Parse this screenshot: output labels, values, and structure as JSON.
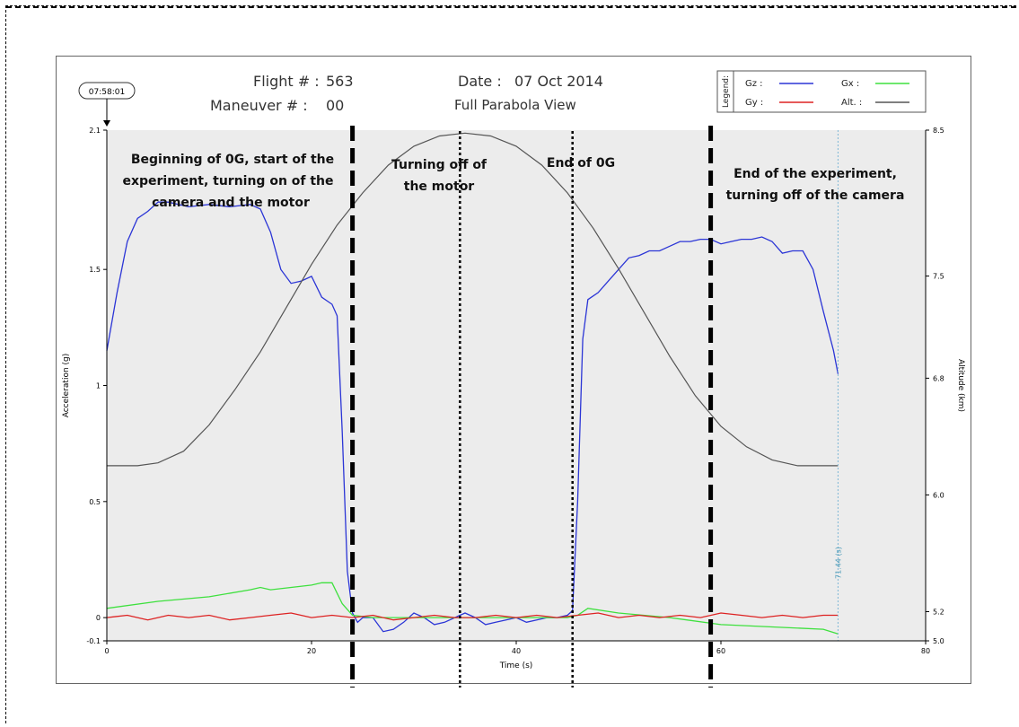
{
  "header": {
    "flight_label": "Flight # :",
    "flight_value": "563",
    "maneuver_label": "Maneuver # :",
    "maneuver_value": "00",
    "date_label": "Date :",
    "date_value": "07 Oct 2014",
    "view_label": "Full Parabola View",
    "start_time": "07:58:01"
  },
  "legend": {
    "title": "Legend:",
    "gz": "Gz :",
    "gx": "Gx :",
    "gy": "Gy :",
    "alt": "Alt. :"
  },
  "cursor_label": "71.44 (s)",
  "annotations": [
    "Beginning of 0G, start of the",
    "experiment, turning on of the",
    "camera and the motor",
    "Turning off of",
    "the motor",
    "End of 0G",
    "End of the experiment,",
    "turning off of the camera"
  ],
  "colors": {
    "gz": "#2b35d6",
    "gx": "#3ee03e",
    "gy": "#dd2222",
    "alt": "#555555",
    "plot_bg": "#ececec"
  },
  "chart_data": {
    "type": "line",
    "xlabel": "Time (s)",
    "ylabel": "Acceleration (g)",
    "y2label": "Altitude (km)",
    "xlim": [
      0,
      80
    ],
    "ylim": [
      -0.1,
      2.1
    ],
    "y2lim": [
      5.0,
      8.5
    ],
    "x_ticks": [
      "0",
      "20",
      "40",
      "60",
      "80"
    ],
    "y_ticks": [
      "-0.1",
      "0",
      "0.5",
      "1",
      "1.5",
      "2.1"
    ],
    "y2_ticks": [
      "5.0",
      "5.2",
      "6.0",
      "6.8",
      "7.5",
      "8.5"
    ],
    "grid": false,
    "legend_position": "top-right",
    "cursor_x": 71.44,
    "markers": [
      {
        "x": 24,
        "style": "dashed"
      },
      {
        "x": 34.5,
        "style": "dotted"
      },
      {
        "x": 45.5,
        "style": "dotted"
      },
      {
        "x": 59,
        "style": "dashed"
      }
    ],
    "series": [
      {
        "name": "Gz",
        "axis": "left",
        "x": [
          0,
          1,
          2,
          3,
          4,
          5,
          6,
          8,
          10,
          12,
          14,
          15,
          16,
          17,
          18,
          19,
          20,
          21,
          22,
          22.5,
          23,
          23.5,
          24,
          24.5,
          25,
          26,
          27,
          28,
          29,
          30,
          31,
          32,
          33,
          34,
          35,
          36,
          37,
          38,
          39,
          40,
          41,
          42,
          43,
          44,
          45,
          45.5,
          46,
          46.5,
          47,
          48,
          49,
          50,
          51,
          52,
          53,
          54,
          55,
          56,
          57,
          58,
          59,
          60,
          61,
          62,
          63,
          64,
          65,
          66,
          67,
          68,
          69,
          70,
          71,
          71.44
        ],
        "y": [
          1.15,
          1.4,
          1.62,
          1.72,
          1.75,
          1.79,
          1.79,
          1.77,
          1.78,
          1.77,
          1.78,
          1.76,
          1.66,
          1.5,
          1.44,
          1.45,
          1.47,
          1.38,
          1.35,
          1.3,
          0.8,
          0.2,
          0.02,
          -0.02,
          0.0,
          0.0,
          -0.06,
          -0.05,
          -0.02,
          0.02,
          0.0,
          -0.03,
          -0.02,
          0.0,
          0.02,
          0.0,
          -0.03,
          -0.02,
          -0.01,
          0.0,
          -0.02,
          -0.01,
          0.0,
          0.0,
          0.01,
          0.03,
          0.5,
          1.2,
          1.37,
          1.4,
          1.45,
          1.5,
          1.55,
          1.56,
          1.58,
          1.58,
          1.6,
          1.62,
          1.62,
          1.63,
          1.63,
          1.61,
          1.62,
          1.63,
          1.63,
          1.64,
          1.62,
          1.57,
          1.58,
          1.58,
          1.5,
          1.32,
          1.15,
          1.05
        ]
      },
      {
        "name": "Gx",
        "axis": "left",
        "x": [
          0,
          5,
          10,
          14,
          15,
          16,
          18,
          20,
          21,
          22,
          23,
          24,
          26,
          30,
          35,
          40,
          45,
          46,
          47,
          50,
          55,
          60,
          65,
          70,
          71.44
        ],
        "y": [
          0.04,
          0.07,
          0.09,
          0.12,
          0.13,
          0.12,
          0.13,
          0.14,
          0.15,
          0.15,
          0.06,
          0.01,
          0.0,
          0.0,
          0.0,
          0.0,
          0.0,
          0.01,
          0.04,
          0.02,
          0.0,
          -0.03,
          -0.04,
          -0.05,
          -0.07
        ]
      },
      {
        "name": "Gy",
        "axis": "left",
        "x": [
          0,
          2,
          4,
          6,
          8,
          10,
          12,
          14,
          16,
          18,
          20,
          22,
          24,
          26,
          28,
          30,
          32,
          34,
          36,
          38,
          40,
          42,
          44,
          46,
          48,
          50,
          52,
          54,
          56,
          58,
          60,
          62,
          64,
          66,
          68,
          70,
          71.44
        ],
        "y": [
          0.0,
          0.01,
          -0.01,
          0.01,
          0.0,
          0.01,
          -0.01,
          0.0,
          0.01,
          0.02,
          0.0,
          0.01,
          0.0,
          0.01,
          -0.01,
          0.0,
          0.01,
          0.0,
          0.0,
          0.01,
          0.0,
          0.01,
          0.0,
          0.01,
          0.02,
          0.0,
          0.01,
          0.0,
          0.01,
          0.0,
          0.02,
          0.01,
          0.0,
          0.01,
          0.0,
          0.01,
          0.01
        ]
      },
      {
        "name": "Alt.",
        "axis": "right",
        "x": [
          0,
          3,
          5,
          7.5,
          10,
          12.5,
          15,
          17.5,
          20,
          22.5,
          25,
          27.5,
          30,
          32.5,
          35,
          37.5,
          40,
          42.5,
          45,
          47.5,
          50,
          52.5,
          55,
          57.5,
          60,
          62.5,
          65,
          67.5,
          70,
          71.44
        ],
        "y": [
          6.2,
          6.2,
          6.22,
          6.3,
          6.48,
          6.72,
          6.98,
          7.28,
          7.58,
          7.85,
          8.07,
          8.26,
          8.39,
          8.46,
          8.48,
          8.46,
          8.39,
          8.26,
          8.07,
          7.83,
          7.55,
          7.25,
          6.95,
          6.68,
          6.47,
          6.33,
          6.24,
          6.2,
          6.2,
          6.2
        ]
      }
    ]
  }
}
